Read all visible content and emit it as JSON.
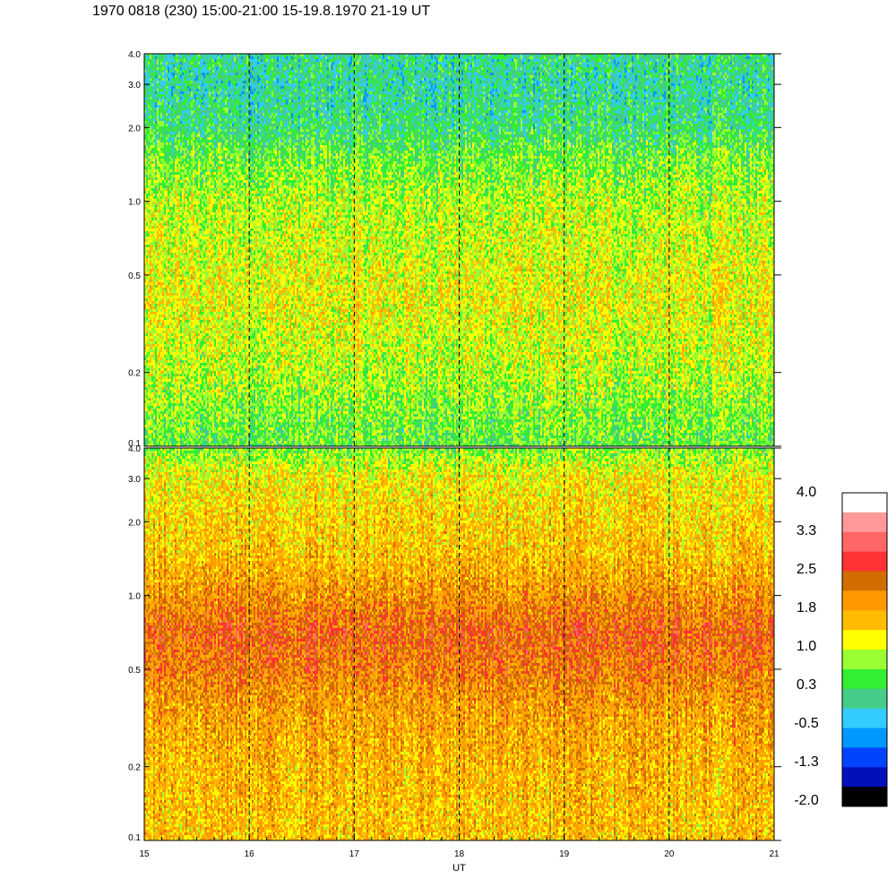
{
  "page_title": "1970 0818 (230) 15:00-21:00 15-19.8.1970  21-19 UT",
  "chart_data": {
    "type": "heatmap",
    "title": "1970 0818 (230) 15:00-21:00 15-19.8.1970  21-19 UT",
    "xlabel": "UT",
    "x_ticks": [
      "15",
      "16",
      "17",
      "18",
      "19",
      "20",
      "21"
    ],
    "xlim": [
      15,
      21
    ],
    "vertical_dashed_lines_at": [
      16,
      17,
      18,
      19,
      20
    ],
    "y_scale": "log",
    "y_ticks": [
      {
        "value": 0.1,
        "label": "0.1"
      },
      {
        "value": 0.2,
        "label": "0.2"
      },
      {
        "value": 0.5,
        "label": "0.5"
      },
      {
        "value": 1.0,
        "label": "1.0"
      },
      {
        "value": 2.0,
        "label": "2.0"
      },
      {
        "value": 3.0,
        "label": "3.0"
      },
      {
        "value": 4.0,
        "label": "4.0"
      }
    ],
    "ylim": [
      0.1,
      4.0
    ],
    "panels": [
      {
        "name": "upper",
        "value_profile": [
          {
            "y": 0.1,
            "value": 0.5
          },
          {
            "y": 0.2,
            "value": 0.9
          },
          {
            "y": 0.4,
            "value": 1.2
          },
          {
            "y": 0.7,
            "value": 1.0
          },
          {
            "y": 1.0,
            "value": 0.9
          },
          {
            "y": 1.5,
            "value": 0.6
          },
          {
            "y": 2.0,
            "value": 0.2
          },
          {
            "y": 3.0,
            "value": 0.0
          },
          {
            "y": 4.0,
            "value": 0.1
          }
        ]
      },
      {
        "name": "lower",
        "value_profile": [
          {
            "y": 0.1,
            "value": 1.6
          },
          {
            "y": 0.2,
            "value": 1.7
          },
          {
            "y": 0.35,
            "value": 1.9
          },
          {
            "y": 0.5,
            "value": 2.2
          },
          {
            "y": 0.7,
            "value": 2.4
          },
          {
            "y": 1.0,
            "value": 2.0
          },
          {
            "y": 1.5,
            "value": 1.6
          },
          {
            "y": 2.0,
            "value": 1.5
          },
          {
            "y": 3.0,
            "value": 1.3
          },
          {
            "y": 4.0,
            "value": 0.7
          }
        ]
      }
    ],
    "colorbar": {
      "labels": [
        "4.0",
        "3.3",
        "2.5",
        "1.8",
        "1.0",
        "0.3",
        "-0.5",
        "-1.3",
        "-2.0"
      ],
      "range": [
        -2.0,
        4.0
      ],
      "colors_top_to_bottom": [
        "#ffffff",
        "#ff9999",
        "#ff6666",
        "#ff3333",
        "#d26e00",
        "#ff9900",
        "#ffbb00",
        "#ffff00",
        "#99ff33",
        "#33ee33",
        "#44cc88",
        "#33ccff",
        "#0099ff",
        "#0044ff",
        "#0011bb",
        "#000000"
      ]
    }
  }
}
